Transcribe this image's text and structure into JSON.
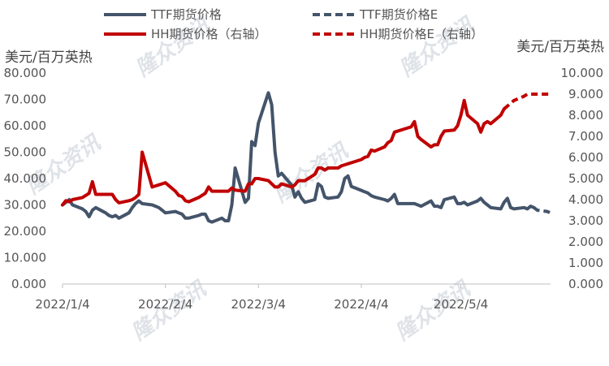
{
  "chart_data": {
    "type": "line",
    "left_axis_unit": "美元/百万英热",
    "right_axis_unit": "美元/百万英热",
    "yleft": {
      "min": 0,
      "max": 80,
      "ticks": [
        "0.000",
        "10.000",
        "20.000",
        "30.000",
        "40.000",
        "50.000",
        "60.000",
        "70.000",
        "80.000"
      ]
    },
    "yright": {
      "min": 0,
      "max": 10,
      "ticks": [
        "0.000",
        "1.000",
        "2.000",
        "3.000",
        "4.000",
        "5.000",
        "6.000",
        "7.000",
        "8.000",
        "9.000",
        "10.000"
      ]
    },
    "x_ticks": [
      {
        "date": "2022-01-04",
        "label": "2022/1/4"
      },
      {
        "date": "2022-02-04",
        "label": "2022/2/4"
      },
      {
        "date": "2022-03-04",
        "label": "2022/3/4"
      },
      {
        "date": "2022-04-04",
        "label": "2022/4/4"
      },
      {
        "date": "2022-05-04",
        "label": "2022/5/4"
      }
    ],
    "x_range": [
      "2022-01-04",
      "2022-05-31"
    ],
    "series": [
      {
        "name": "TTF期货价格",
        "axis": "left",
        "color": "#44546a",
        "dash": false,
        "points": [
          [
            "2022-01-04",
            30.0
          ],
          [
            "2022-01-05",
            31.0
          ],
          [
            "2022-01-06",
            32.0
          ],
          [
            "2022-01-07",
            30.0
          ],
          [
            "2022-01-10",
            28.5
          ],
          [
            "2022-01-11",
            27.5
          ],
          [
            "2022-01-12",
            25.5
          ],
          [
            "2022-01-13",
            28.0
          ],
          [
            "2022-01-14",
            29.0
          ],
          [
            "2022-01-17",
            27.0
          ],
          [
            "2022-01-18",
            26.0
          ],
          [
            "2022-01-19",
            25.5
          ],
          [
            "2022-01-20",
            26.0
          ],
          [
            "2022-01-21",
            25.0
          ],
          [
            "2022-01-24",
            27.0
          ],
          [
            "2022-01-25",
            29.0
          ],
          [
            "2022-01-26",
            30.5
          ],
          [
            "2022-01-27",
            31.5
          ],
          [
            "2022-01-28",
            30.5
          ],
          [
            "2022-01-31",
            30.0
          ],
          [
            "2022-02-01",
            29.5
          ],
          [
            "2022-02-02",
            29.0
          ],
          [
            "2022-02-03",
            28.0
          ],
          [
            "2022-02-04",
            27.0
          ],
          [
            "2022-02-07",
            27.5
          ],
          [
            "2022-02-08",
            27.0
          ],
          [
            "2022-02-09",
            26.5
          ],
          [
            "2022-02-10",
            25.0
          ],
          [
            "2022-02-11",
            25.0
          ],
          [
            "2022-02-14",
            26.0
          ],
          [
            "2022-02-15",
            26.5
          ],
          [
            "2022-02-16",
            26.5
          ],
          [
            "2022-02-17",
            24.0
          ],
          [
            "2022-02-18",
            23.5
          ],
          [
            "2022-02-21",
            25.0
          ],
          [
            "2022-02-22",
            24.0
          ],
          [
            "2022-02-23",
            24.0
          ],
          [
            "2022-02-24",
            30.0
          ],
          [
            "2022-02-25",
            44.0
          ],
          [
            "2022-02-28",
            31.0
          ],
          [
            "2022-03-01",
            32.5
          ],
          [
            "2022-03-02",
            54.0
          ],
          [
            "2022-03-03",
            52.5
          ],
          [
            "2022-03-04",
            61.0
          ],
          [
            "2022-03-07",
            72.5
          ],
          [
            "2022-03-08",
            68.0
          ],
          [
            "2022-03-09",
            50.0
          ],
          [
            "2022-03-10",
            41.0
          ],
          [
            "2022-03-11",
            42.0
          ],
          [
            "2022-03-14",
            37.5
          ],
          [
            "2022-03-15",
            33.0
          ],
          [
            "2022-03-16",
            35.0
          ],
          [
            "2022-03-17",
            32.5
          ],
          [
            "2022-03-18",
            31.0
          ],
          [
            "2022-03-21",
            32.0
          ],
          [
            "2022-03-22",
            38.0
          ],
          [
            "2022-03-23",
            37.0
          ],
          [
            "2022-03-24",
            33.0
          ],
          [
            "2022-03-25",
            32.5
          ],
          [
            "2022-03-28",
            33.0
          ],
          [
            "2022-03-29",
            35.0
          ],
          [
            "2022-03-30",
            40.0
          ],
          [
            "2022-03-31",
            41.0
          ],
          [
            "2022-04-01",
            37.0
          ],
          [
            "2022-04-04",
            35.5
          ],
          [
            "2022-04-05",
            35.0
          ],
          [
            "2022-04-06",
            34.5
          ],
          [
            "2022-04-07",
            33.5
          ],
          [
            "2022-04-08",
            33.0
          ],
          [
            "2022-04-11",
            32.0
          ],
          [
            "2022-04-12",
            31.5
          ],
          [
            "2022-04-13",
            32.5
          ],
          [
            "2022-04-14",
            34.0
          ],
          [
            "2022-04-15",
            30.5
          ],
          [
            "2022-04-19",
            30.5
          ],
          [
            "2022-04-20",
            30.5
          ],
          [
            "2022-04-21",
            30.0
          ],
          [
            "2022-04-22",
            29.5
          ],
          [
            "2022-04-25",
            31.5
          ],
          [
            "2022-04-26",
            29.5
          ],
          [
            "2022-04-27",
            29.5
          ],
          [
            "2022-04-28",
            29.0
          ],
          [
            "2022-04-29",
            32.0
          ],
          [
            "2022-05-02",
            33.0
          ],
          [
            "2022-05-03",
            30.5
          ],
          [
            "2022-05-04",
            30.5
          ],
          [
            "2022-05-05",
            31.0
          ],
          [
            "2022-05-06",
            30.0
          ],
          [
            "2022-05-09",
            31.5
          ],
          [
            "2022-05-10",
            32.5
          ],
          [
            "2022-05-11",
            31.0
          ],
          [
            "2022-05-12",
            30.0
          ],
          [
            "2022-05-13",
            29.0
          ],
          [
            "2022-05-16",
            28.5
          ],
          [
            "2022-05-17",
            31.0
          ],
          [
            "2022-05-18",
            32.5
          ],
          [
            "2022-05-19",
            29.0
          ],
          [
            "2022-05-20",
            28.5
          ],
          [
            "2022-05-23",
            29.0
          ],
          [
            "2022-05-24",
            28.5
          ],
          [
            "2022-05-25",
            29.5
          ],
          [
            "2022-05-26",
            29.0
          ]
        ]
      },
      {
        "name": "TTF期货价格E",
        "axis": "left",
        "color": "#44546a",
        "dash": true,
        "points": [
          [
            "2022-05-26",
            29.0
          ],
          [
            "2022-05-27",
            28.0
          ],
          [
            "2022-05-30",
            27.5
          ],
          [
            "2022-05-31",
            27.0
          ]
        ]
      },
      {
        "name": "HH期货价格（右轴）",
        "axis": "right",
        "color": "#c00000",
        "dash": false,
        "points": [
          [
            "2022-01-04",
            3.75
          ],
          [
            "2022-01-05",
            3.95
          ],
          [
            "2022-01-06",
            3.9
          ],
          [
            "2022-01-07",
            4.0
          ],
          [
            "2022-01-10",
            4.1
          ],
          [
            "2022-01-11",
            4.2
          ],
          [
            "2022-01-12",
            4.3
          ],
          [
            "2022-01-13",
            4.85
          ],
          [
            "2022-01-14",
            4.25
          ],
          [
            "2022-01-17",
            4.25
          ],
          [
            "2022-01-18",
            4.25
          ],
          [
            "2022-01-19",
            4.25
          ],
          [
            "2022-01-20",
            4.0
          ],
          [
            "2022-01-21",
            3.85
          ],
          [
            "2022-01-24",
            3.95
          ],
          [
            "2022-01-25",
            4.0
          ],
          [
            "2022-01-26",
            4.1
          ],
          [
            "2022-01-27",
            4.25
          ],
          [
            "2022-01-28",
            6.25
          ],
          [
            "2022-01-31",
            4.6
          ],
          [
            "2022-02-01",
            4.65
          ],
          [
            "2022-02-02",
            4.7
          ],
          [
            "2022-02-03",
            4.75
          ],
          [
            "2022-02-04",
            4.8
          ],
          [
            "2022-02-07",
            4.4
          ],
          [
            "2022-02-08",
            4.2
          ],
          [
            "2022-02-09",
            4.15
          ],
          [
            "2022-02-10",
            3.95
          ],
          [
            "2022-02-11",
            3.9
          ],
          [
            "2022-02-14",
            4.1
          ],
          [
            "2022-02-15",
            4.2
          ],
          [
            "2022-02-16",
            4.3
          ],
          [
            "2022-02-17",
            4.6
          ],
          [
            "2022-02-18",
            4.4
          ],
          [
            "2022-02-22",
            4.4
          ],
          [
            "2022-02-23",
            4.4
          ],
          [
            "2022-02-24",
            4.55
          ],
          [
            "2022-02-25",
            4.45
          ],
          [
            "2022-02-28",
            4.4
          ],
          [
            "2022-03-01",
            4.75
          ],
          [
            "2022-03-02",
            4.75
          ],
          [
            "2022-03-03",
            5.0
          ],
          [
            "2022-03-04",
            5.0
          ],
          [
            "2022-03-07",
            4.9
          ],
          [
            "2022-03-08",
            4.75
          ],
          [
            "2022-03-09",
            4.6
          ],
          [
            "2022-03-10",
            4.6
          ],
          [
            "2022-03-11",
            4.75
          ],
          [
            "2022-03-14",
            4.6
          ],
          [
            "2022-03-15",
            4.7
          ],
          [
            "2022-03-16",
            4.9
          ],
          [
            "2022-03-17",
            4.9
          ],
          [
            "2022-03-18",
            4.9
          ],
          [
            "2022-03-21",
            5.2
          ],
          [
            "2022-03-22",
            5.5
          ],
          [
            "2022-03-23",
            5.5
          ],
          [
            "2022-03-24",
            5.4
          ],
          [
            "2022-03-25",
            5.5
          ],
          [
            "2022-03-28",
            5.5
          ],
          [
            "2022-03-29",
            5.6
          ],
          [
            "2022-03-30",
            5.65
          ],
          [
            "2022-03-31",
            5.7
          ],
          [
            "2022-04-01",
            5.75
          ],
          [
            "2022-04-04",
            5.9
          ],
          [
            "2022-04-05",
            6.0
          ],
          [
            "2022-04-06",
            6.05
          ],
          [
            "2022-04-07",
            6.35
          ],
          [
            "2022-04-08",
            6.3
          ],
          [
            "2022-04-11",
            6.5
          ],
          [
            "2022-04-12",
            6.7
          ],
          [
            "2022-04-13",
            6.8
          ],
          [
            "2022-04-14",
            7.2
          ],
          [
            "2022-04-18",
            7.4
          ],
          [
            "2022-04-19",
            7.45
          ],
          [
            "2022-04-20",
            7.7
          ],
          [
            "2022-04-21",
            7.0
          ],
          [
            "2022-04-22",
            6.85
          ],
          [
            "2022-04-25",
            6.5
          ],
          [
            "2022-04-26",
            6.6
          ],
          [
            "2022-04-27",
            6.6
          ],
          [
            "2022-04-28",
            7.0
          ],
          [
            "2022-04-29",
            7.25
          ],
          [
            "2022-05-02",
            7.3
          ],
          [
            "2022-05-03",
            7.5
          ],
          [
            "2022-05-04",
            8.0
          ],
          [
            "2022-05-05",
            8.7
          ],
          [
            "2022-05-06",
            8.0
          ],
          [
            "2022-05-09",
            7.6
          ],
          [
            "2022-05-10",
            7.2
          ],
          [
            "2022-05-11",
            7.6
          ],
          [
            "2022-05-12",
            7.7
          ],
          [
            "2022-05-13",
            7.6
          ],
          [
            "2022-05-16",
            8.0
          ],
          [
            "2022-05-17",
            8.3
          ]
        ]
      },
      {
        "name": "HH期货价格E（右轴）",
        "axis": "right",
        "color": "#c00000",
        "dash": true,
        "points": [
          [
            "2022-05-17",
            8.3
          ],
          [
            "2022-05-20",
            8.7
          ],
          [
            "2022-05-23",
            8.9
          ],
          [
            "2022-05-24",
            9.0
          ],
          [
            "2022-05-25",
            9.0
          ],
          [
            "2022-05-31",
            9.0
          ]
        ]
      }
    ],
    "legend_position": "top",
    "watermark": "隆众资讯"
  }
}
